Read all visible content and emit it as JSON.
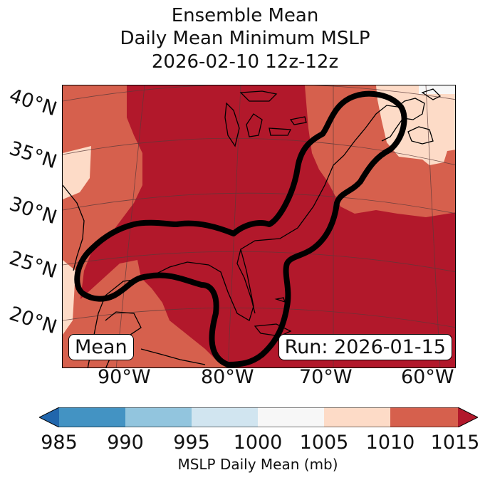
{
  "title": {
    "line1": "Ensemble Mean",
    "line2": "Daily Mean Minimum MSLP",
    "line3": "2026-02-10 12z-12z"
  },
  "map": {
    "lat_labels": [
      "40°N",
      "35°N",
      "30°N",
      "25°N",
      "20°N"
    ],
    "lon_labels": [
      "90°W",
      "80°W",
      "70°W",
      "60°W"
    ],
    "member_label": "Mean",
    "run_label": "Run: 2026-01-15",
    "colors": {
      "c1010_1015": "#b2182b",
      "c1005_1010": "#d6604d",
      "c1000_1005": "#fddbc7",
      "c995_1000": "#f7f7f7",
      "c990_995": "#d1e5f0",
      "c985_990": "#92c5de",
      "c980_985": "#4393c3",
      "under": "#2166ac",
      "over": "#b2182b",
      "contour": "#000000",
      "coast": "#000000",
      "grid": "#5a3a3a"
    }
  },
  "colorbar": {
    "ticks": [
      "985",
      "990",
      "995",
      "1000",
      "1005",
      "1010",
      "1015"
    ],
    "label": "MSLP Daily Mean (mb)"
  }
}
